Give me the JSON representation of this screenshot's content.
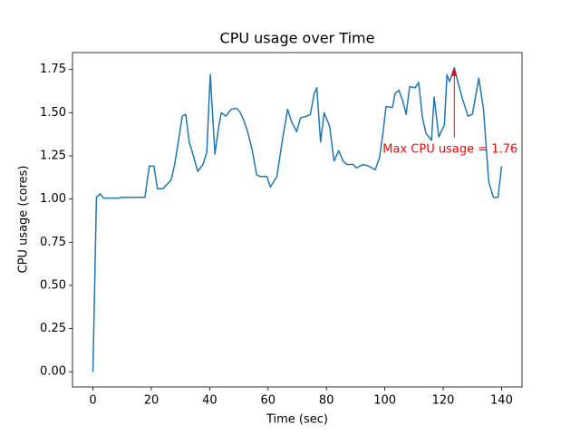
{
  "chart_data": {
    "type": "line",
    "title": "CPU usage over Time",
    "xlabel": "Time (sec)",
    "ylabel": "CPU usage (cores)",
    "color": "#1f77b4",
    "x": [
      0,
      1.2,
      2.5,
      3.7,
      5.6,
      8.7,
      10,
      15,
      17.8,
      19.3,
      20.9,
      22.1,
      24,
      26.8,
      28,
      29.6,
      30.6,
      31.8,
      33,
      34.6,
      35.9,
      37.7,
      39,
      40.2,
      41.8,
      43,
      44,
      45.5,
      47.4,
      49.3,
      50.5,
      51.8,
      53,
      54.6,
      56.1,
      57.4,
      59.6,
      60.8,
      63,
      64.9,
      66.7,
      68,
      69.8,
      71.1,
      73.3,
      74.5,
      75.8,
      76.7,
      78,
      79.2,
      81.1,
      82.6,
      84.2,
      85.7,
      87,
      89.2,
      90.2,
      92.6,
      94.5,
      96.7,
      98.2,
      99.5,
      100.4,
      102.6,
      103.5,
      104.8,
      106.3,
      107.3,
      108.5,
      110.4,
      111.6,
      112.9,
      114.1,
      116,
      116.9,
      118.5,
      120.4,
      121.3,
      122.2,
      123.8,
      125,
      126.6,
      128.5,
      130,
      132.2,
      133.8,
      134.7,
      135.6,
      137.2,
      138.8,
      140
    ],
    "values": [
      0,
      1.01,
      1.03,
      1.005,
      1.005,
      1.005,
      1.01,
      1.01,
      1.01,
      1.19,
      1.19,
      1.06,
      1.06,
      1.11,
      1.2,
      1.37,
      1.48,
      1.49,
      1.33,
      1.24,
      1.16,
      1.2,
      1.27,
      1.72,
      1.26,
      1.41,
      1.5,
      1.48,
      1.52,
      1.525,
      1.5,
      1.45,
      1.39,
      1.28,
      1.14,
      1.13,
      1.13,
      1.07,
      1.13,
      1.34,
      1.52,
      1.45,
      1.39,
      1.47,
      1.48,
      1.49,
      1.61,
      1.645,
      1.33,
      1.5,
      1.42,
      1.22,
      1.28,
      1.22,
      1.2,
      1.2,
      1.18,
      1.2,
      1.19,
      1.17,
      1.24,
      1.4,
      1.535,
      1.53,
      1.61,
      1.63,
      1.56,
      1.49,
      1.65,
      1.645,
      1.675,
      1.47,
      1.38,
      1.34,
      1.59,
      1.36,
      1.43,
      1.72,
      1.68,
      1.76,
      1.68,
      1.58,
      1.48,
      1.49,
      1.7,
      1.52,
      1.31,
      1.1,
      1.01,
      1.01,
      1.19
    ],
    "xlim": [
      -7,
      147
    ],
    "ylim": [
      -0.088,
      1.848
    ],
    "xticks": [
      0,
      20,
      40,
      60,
      80,
      100,
      120,
      140
    ],
    "yticks": [
      {
        "value": 0,
        "label": "0.00"
      },
      {
        "value": 0.25,
        "label": "0.25"
      },
      {
        "value": 0.5,
        "label": "0.50"
      },
      {
        "value": 0.75,
        "label": "0.75"
      },
      {
        "value": 1,
        "label": "1.00"
      },
      {
        "value": 1.25,
        "label": "1.25"
      },
      {
        "value": 1.5,
        "label": "1.50"
      },
      {
        "value": 1.75,
        "label": "1.75"
      }
    ],
    "grid": false,
    "annotation": {
      "text": "Max CPU usage = 1.76",
      "x": 123.8,
      "y": 1.76,
      "color": "#ff0000"
    }
  }
}
